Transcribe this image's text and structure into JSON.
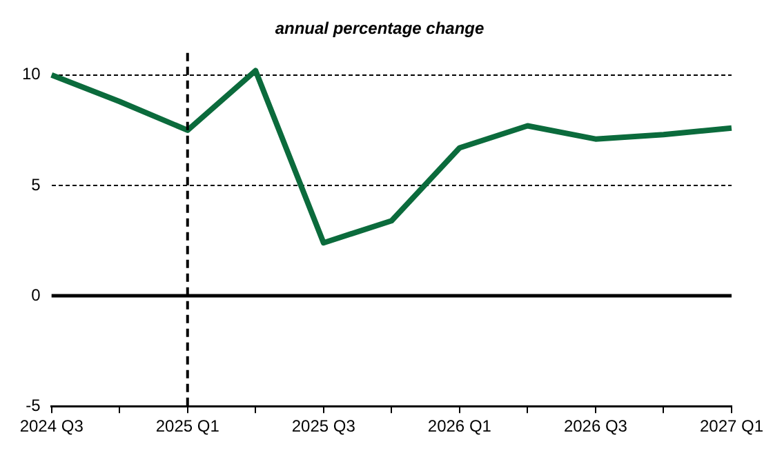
{
  "chart_data": {
    "type": "line",
    "title": "annual percentage change",
    "categories": [
      "2024 Q3",
      null,
      "2025 Q1",
      null,
      "2025 Q3",
      null,
      "2026 Q1",
      null,
      "2026 Q3",
      null,
      "2027 Q1"
    ],
    "series": [
      {
        "color": "#0b6b3c",
        "values": [
          10.0,
          8.8,
          7.5,
          10.2,
          2.4,
          3.4,
          6.7,
          7.7,
          7.1,
          7.3,
          7.6
        ]
      }
    ],
    "ylim": [
      -5,
      11
    ],
    "yticks": [
      -5,
      0,
      5,
      10
    ],
    "grid": "y",
    "legend": false,
    "marker": "none",
    "line_style": "solid",
    "ref_lines": [
      {
        "axis": "x",
        "value": "2025 Q1",
        "line_style": "dashed",
        "color": "#000000"
      },
      {
        "axis": "y",
        "value": 0,
        "line_style": "solid",
        "color": "#000000"
      }
    ]
  }
}
